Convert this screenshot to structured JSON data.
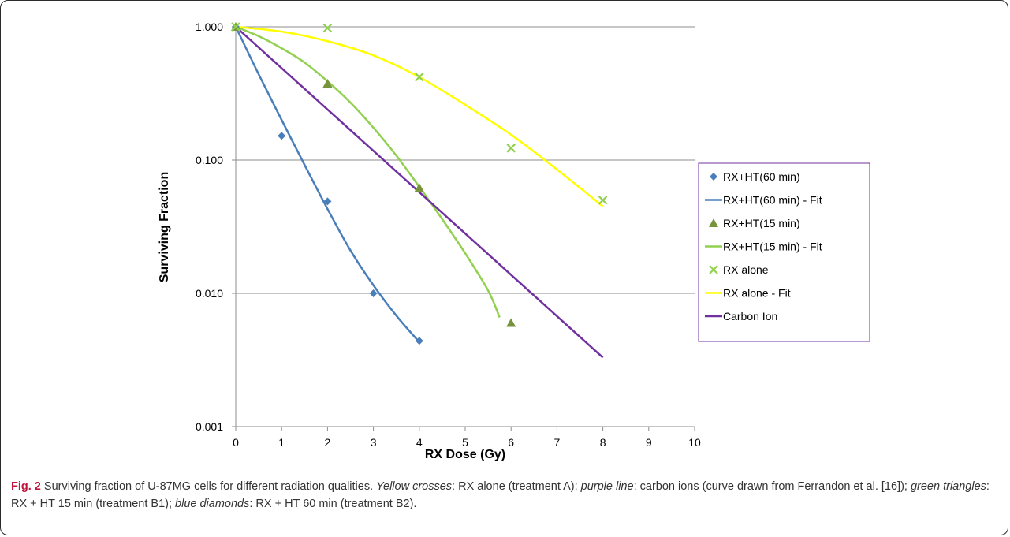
{
  "chart_data": {
    "type": "scatter",
    "xlabel": "RX Dose (Gy)",
    "ylabel": "Surviving Fraction",
    "xlim": [
      0,
      10
    ],
    "ylim": [
      0.001,
      1
    ],
    "y_scale": "log",
    "grid": "horizontal",
    "legend_position": "right",
    "x_ticks": [
      "0",
      "1",
      "2",
      "3",
      "4",
      "5",
      "6",
      "7",
      "8",
      "9",
      "10"
    ],
    "y_ticks": [
      {
        "value": 1,
        "label": "1.000"
      },
      {
        "value": 0.1,
        "label": "0.100"
      },
      {
        "value": 0.01,
        "label": "0.010"
      },
      {
        "value": 0.001,
        "label": "0.001"
      }
    ],
    "series": [
      {
        "name": "RX+HT(60 min)",
        "kind": "markers",
        "marker": "diamond",
        "color": "#4a7ebb",
        "x": [
          0,
          1,
          2,
          3,
          4
        ],
        "y": [
          1.0,
          0.152,
          0.049,
          0.01,
          0.0044
        ]
      },
      {
        "name": "RX+HT(60 min) - Fit",
        "kind": "line",
        "color": "#4a7ebb",
        "x": [
          0,
          0.5,
          1,
          1.5,
          2,
          2.5,
          3,
          3.5,
          4
        ],
        "y": [
          1.0,
          0.44,
          0.2,
          0.092,
          0.043,
          0.021,
          0.0115,
          0.0068,
          0.0043
        ]
      },
      {
        "name": "RX+HT(15 min)",
        "kind": "markers",
        "marker": "triangle",
        "color": "#77933c",
        "x": [
          0,
          2,
          4,
          6
        ],
        "y": [
          1.0,
          0.375,
          0.062,
          0.006
        ]
      },
      {
        "name": "RX+HT(15 min) - Fit",
        "kind": "line",
        "color": "#92d050",
        "x": [
          0,
          0.5,
          1,
          1.5,
          2,
          2.5,
          3,
          3.5,
          4,
          4.5,
          5,
          5.5,
          5.75
        ],
        "y": [
          1.0,
          0.85,
          0.69,
          0.54,
          0.39,
          0.27,
          0.175,
          0.108,
          0.063,
          0.036,
          0.02,
          0.0105,
          0.0066
        ]
      },
      {
        "name": "RX alone",
        "kind": "markers",
        "marker": "x",
        "color": "#92d050",
        "x": [
          0,
          2,
          4,
          6,
          8
        ],
        "y": [
          1.0,
          0.98,
          0.42,
          0.123,
          0.05
        ]
      },
      {
        "name": "RX alone - Fit",
        "kind": "line",
        "color": "#ffff00",
        "x": [
          0,
          1,
          2,
          3,
          4,
          5,
          6,
          7,
          8
        ],
        "y": [
          1.0,
          0.92,
          0.78,
          0.61,
          0.42,
          0.26,
          0.155,
          0.085,
          0.045
        ]
      },
      {
        "name": "Carbon Ion",
        "kind": "line",
        "color": "#7030a0",
        "x": [
          0,
          8
        ],
        "y": [
          1.0,
          0.0033
        ]
      }
    ]
  },
  "caption": {
    "fig_label": "Fig. 2",
    "lead": " Surviving fraction of U-87MG cells for different radiation qualities. ",
    "yellow_label": "Yellow crosses",
    "yellow_text": ": RX alone (treatment A); ",
    "purple_label": "purple line",
    "purple_text": ": carbon ions (curve drawn from Ferrandon et al. [16]); ",
    "green_label": "green triangles",
    "green_text": ": RX + HT 15 min (treatment B1); ",
    "blue_label": "blue diamonds",
    "blue_text": ": RX + HT 60 min (treatment B2)."
  }
}
